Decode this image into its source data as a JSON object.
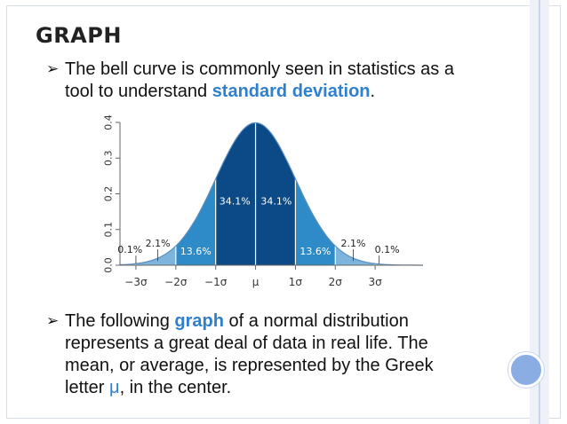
{
  "slide": {
    "title": "GRAPH",
    "bullet1": {
      "before": "The bell curve is commonly seen in statistics as a tool to understand ",
      "highlight": "standard deviation",
      "after": "."
    },
    "bullet2": {
      "before": "The following ",
      "highlight": "graph",
      "middle": " of a normal distribution represents a great deal of data in real life. The mean, or average, is represented by the Greek letter ",
      "mu": "μ",
      "after": ", in the center."
    },
    "colors": {
      "accent": "#2f7fcf",
      "band_inner": "#0b4a86",
      "band_middle": "#2e8bc7",
      "band_outer": "#7db4dc",
      "band_tail": "#a8cde9",
      "circle": "#8aaee3"
    }
  },
  "chart_data": {
    "type": "area",
    "title": "",
    "xlabel": "",
    "ylabel": "",
    "x_ticks": [
      "−3σ",
      "−2σ",
      "−1σ",
      "μ",
      "1σ",
      "2σ",
      "3σ"
    ],
    "y_ticks": [
      "0.0",
      "0.1",
      "0.2",
      "0.3",
      "0.4"
    ],
    "xlim": [
      -3.4,
      4.2
    ],
    "ylim": [
      0,
      0.4
    ],
    "curve": "standard normal density",
    "bands": [
      {
        "range": [
          -3,
          -2
        ],
        "label": "2.1%",
        "value": 2.1
      },
      {
        "range": [
          -2,
          -1
        ],
        "label": "13.6%",
        "value": 13.6
      },
      {
        "range": [
          -1,
          0
        ],
        "label": "34.1%",
        "value": 34.1
      },
      {
        "range": [
          0,
          1
        ],
        "label": "34.1%",
        "value": 34.1
      },
      {
        "range": [
          1,
          2
        ],
        "label": "13.6%",
        "value": 13.6
      },
      {
        "range": [
          2,
          3
        ],
        "label": "2.1%",
        "value": 2.1
      }
    ],
    "tails": [
      {
        "side": "left",
        "label": "0.1%",
        "value": 0.1
      },
      {
        "side": "right",
        "label": "0.1%",
        "value": 0.1
      }
    ]
  }
}
